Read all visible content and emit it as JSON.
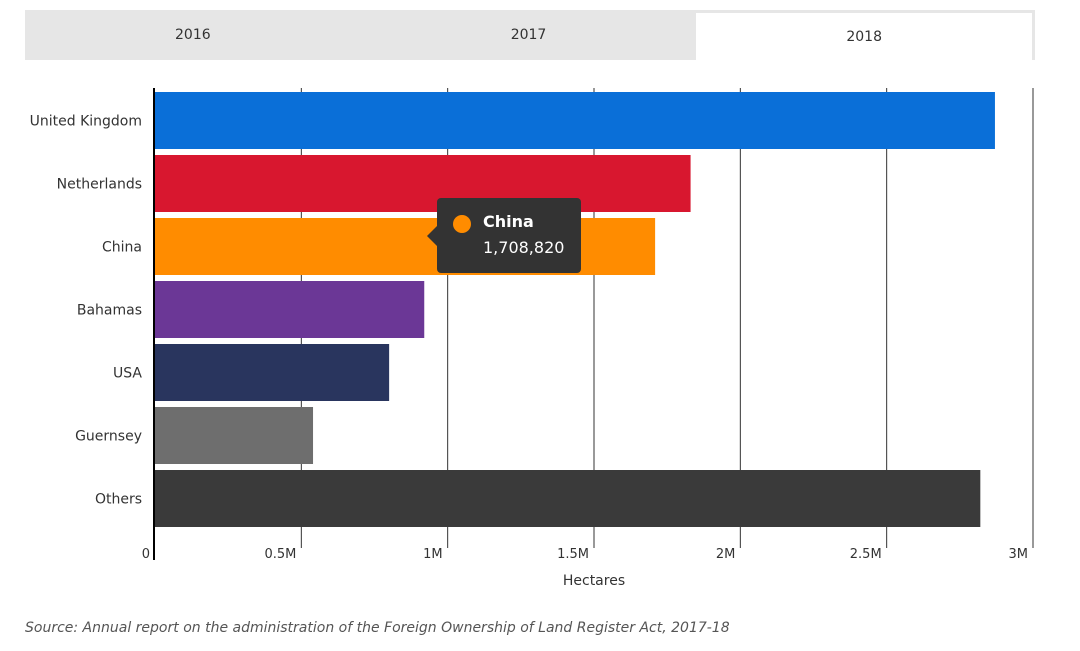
{
  "tabs": [
    {
      "label": "2016",
      "active": false
    },
    {
      "label": "2017",
      "active": false
    },
    {
      "label": "2018",
      "active": true
    }
  ],
  "chart_data": {
    "type": "bar",
    "orientation": "horizontal",
    "categories": [
      "United Kingdom",
      "Netherlands",
      "China",
      "Bahamas",
      "USA",
      "Guernsey",
      "Others"
    ],
    "values": [
      2870000,
      1830000,
      1708820,
      920000,
      800000,
      540000,
      2820000
    ],
    "colors": [
      "#0a6fd8",
      "#d8172f",
      "#ff8c00",
      "#6b3796",
      "#29355e",
      "#6e6e6e",
      "#3a3a3a"
    ],
    "xlabel": "Hectares",
    "xlim": [
      0,
      3000000
    ],
    "xticks": [
      {
        "value": 0,
        "label": "0"
      },
      {
        "value": 500000,
        "label": "0.5M"
      },
      {
        "value": 1000000,
        "label": "1M"
      },
      {
        "value": 1500000,
        "label": "1.5M"
      },
      {
        "value": 2000000,
        "label": "2M"
      },
      {
        "value": 2500000,
        "label": "2.5M"
      },
      {
        "value": 3000000,
        "label": "3M"
      }
    ],
    "grid": true
  },
  "tooltip": {
    "name": "China",
    "value": "1,708,820",
    "color": "#ff8c00"
  },
  "source": "Source: Annual report on the administration of the Foreign Ownership of Land Register Act, 2017-18"
}
